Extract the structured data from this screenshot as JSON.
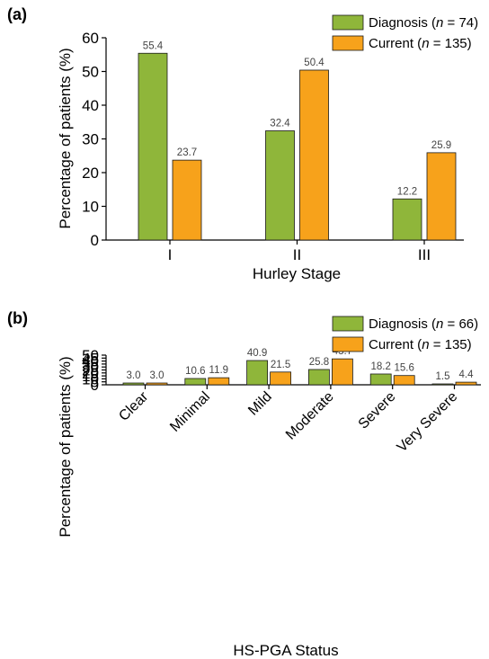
{
  "colors": {
    "diagnosis": "#8fb63a",
    "current": "#f7a21b",
    "axis": "#000000",
    "label": "#444444"
  },
  "chart_data": [
    {
      "panel": "(a)",
      "type": "bar",
      "categories": [
        "I",
        "II",
        "III"
      ],
      "series": [
        {
          "name": "Diagnosis (n = 74)",
          "values": [
            55.4,
            32.4,
            12.2
          ]
        },
        {
          "name": "Current (n = 135)",
          "values": [
            23.7,
            50.4,
            25.9
          ]
        }
      ],
      "xlabel": "Hurley Stage",
      "ylabel": "Percentage of patients (%)",
      "ylim": [
        0,
        60
      ],
      "yticks": [
        "0",
        "10",
        "20",
        "30",
        "40",
        "50",
        "60"
      ],
      "data_labels": [
        [
          "55.4",
          "32.4",
          "12.2"
        ],
        [
          "23.7",
          "50.4",
          "25.9"
        ]
      ],
      "legend": {
        "position": "top-right",
        "entries": [
          {
            "prefix": "Diagnosis (",
            "n": "n",
            "suffix": " = 74)"
          },
          {
            "prefix": "Current (",
            "n": "n",
            "suffix": " = 135)"
          }
        ]
      }
    },
    {
      "panel": "(b)",
      "type": "bar",
      "categories": [
        "Clear",
        "Minimal",
        "Mild",
        "Moderate",
        "Severe",
        "Very Severe"
      ],
      "series": [
        {
          "name": "Diagnosis (n = 66)",
          "values": [
            3.0,
            10.6,
            40.9,
            25.8,
            18.2,
            1.5
          ]
        },
        {
          "name": "Current (n = 135)",
          "values": [
            3.0,
            11.9,
            21.5,
            43.7,
            15.6,
            4.4
          ]
        }
      ],
      "xlabel": "HS-PGA Status",
      "ylabel": "Percentage of patients (%)",
      "ylim": [
        0,
        50
      ],
      "yticks": [
        "0",
        "5",
        "10",
        "15",
        "20",
        "25",
        "30",
        "35",
        "40",
        "45",
        "50"
      ],
      "data_labels": [
        [
          "3.0",
          "10.6",
          "40.9",
          "25.8",
          "18.2",
          "1.5"
        ],
        [
          "3.0",
          "11.9",
          "21.5",
          "43.7",
          "15.6",
          "4.4"
        ]
      ],
      "legend": {
        "position": "top-right",
        "entries": [
          {
            "prefix": "Diagnosis (",
            "n": "n",
            "suffix": " = 66)"
          },
          {
            "prefix": "Current (",
            "n": "n",
            "suffix": " = 135)"
          }
        ]
      }
    }
  ]
}
